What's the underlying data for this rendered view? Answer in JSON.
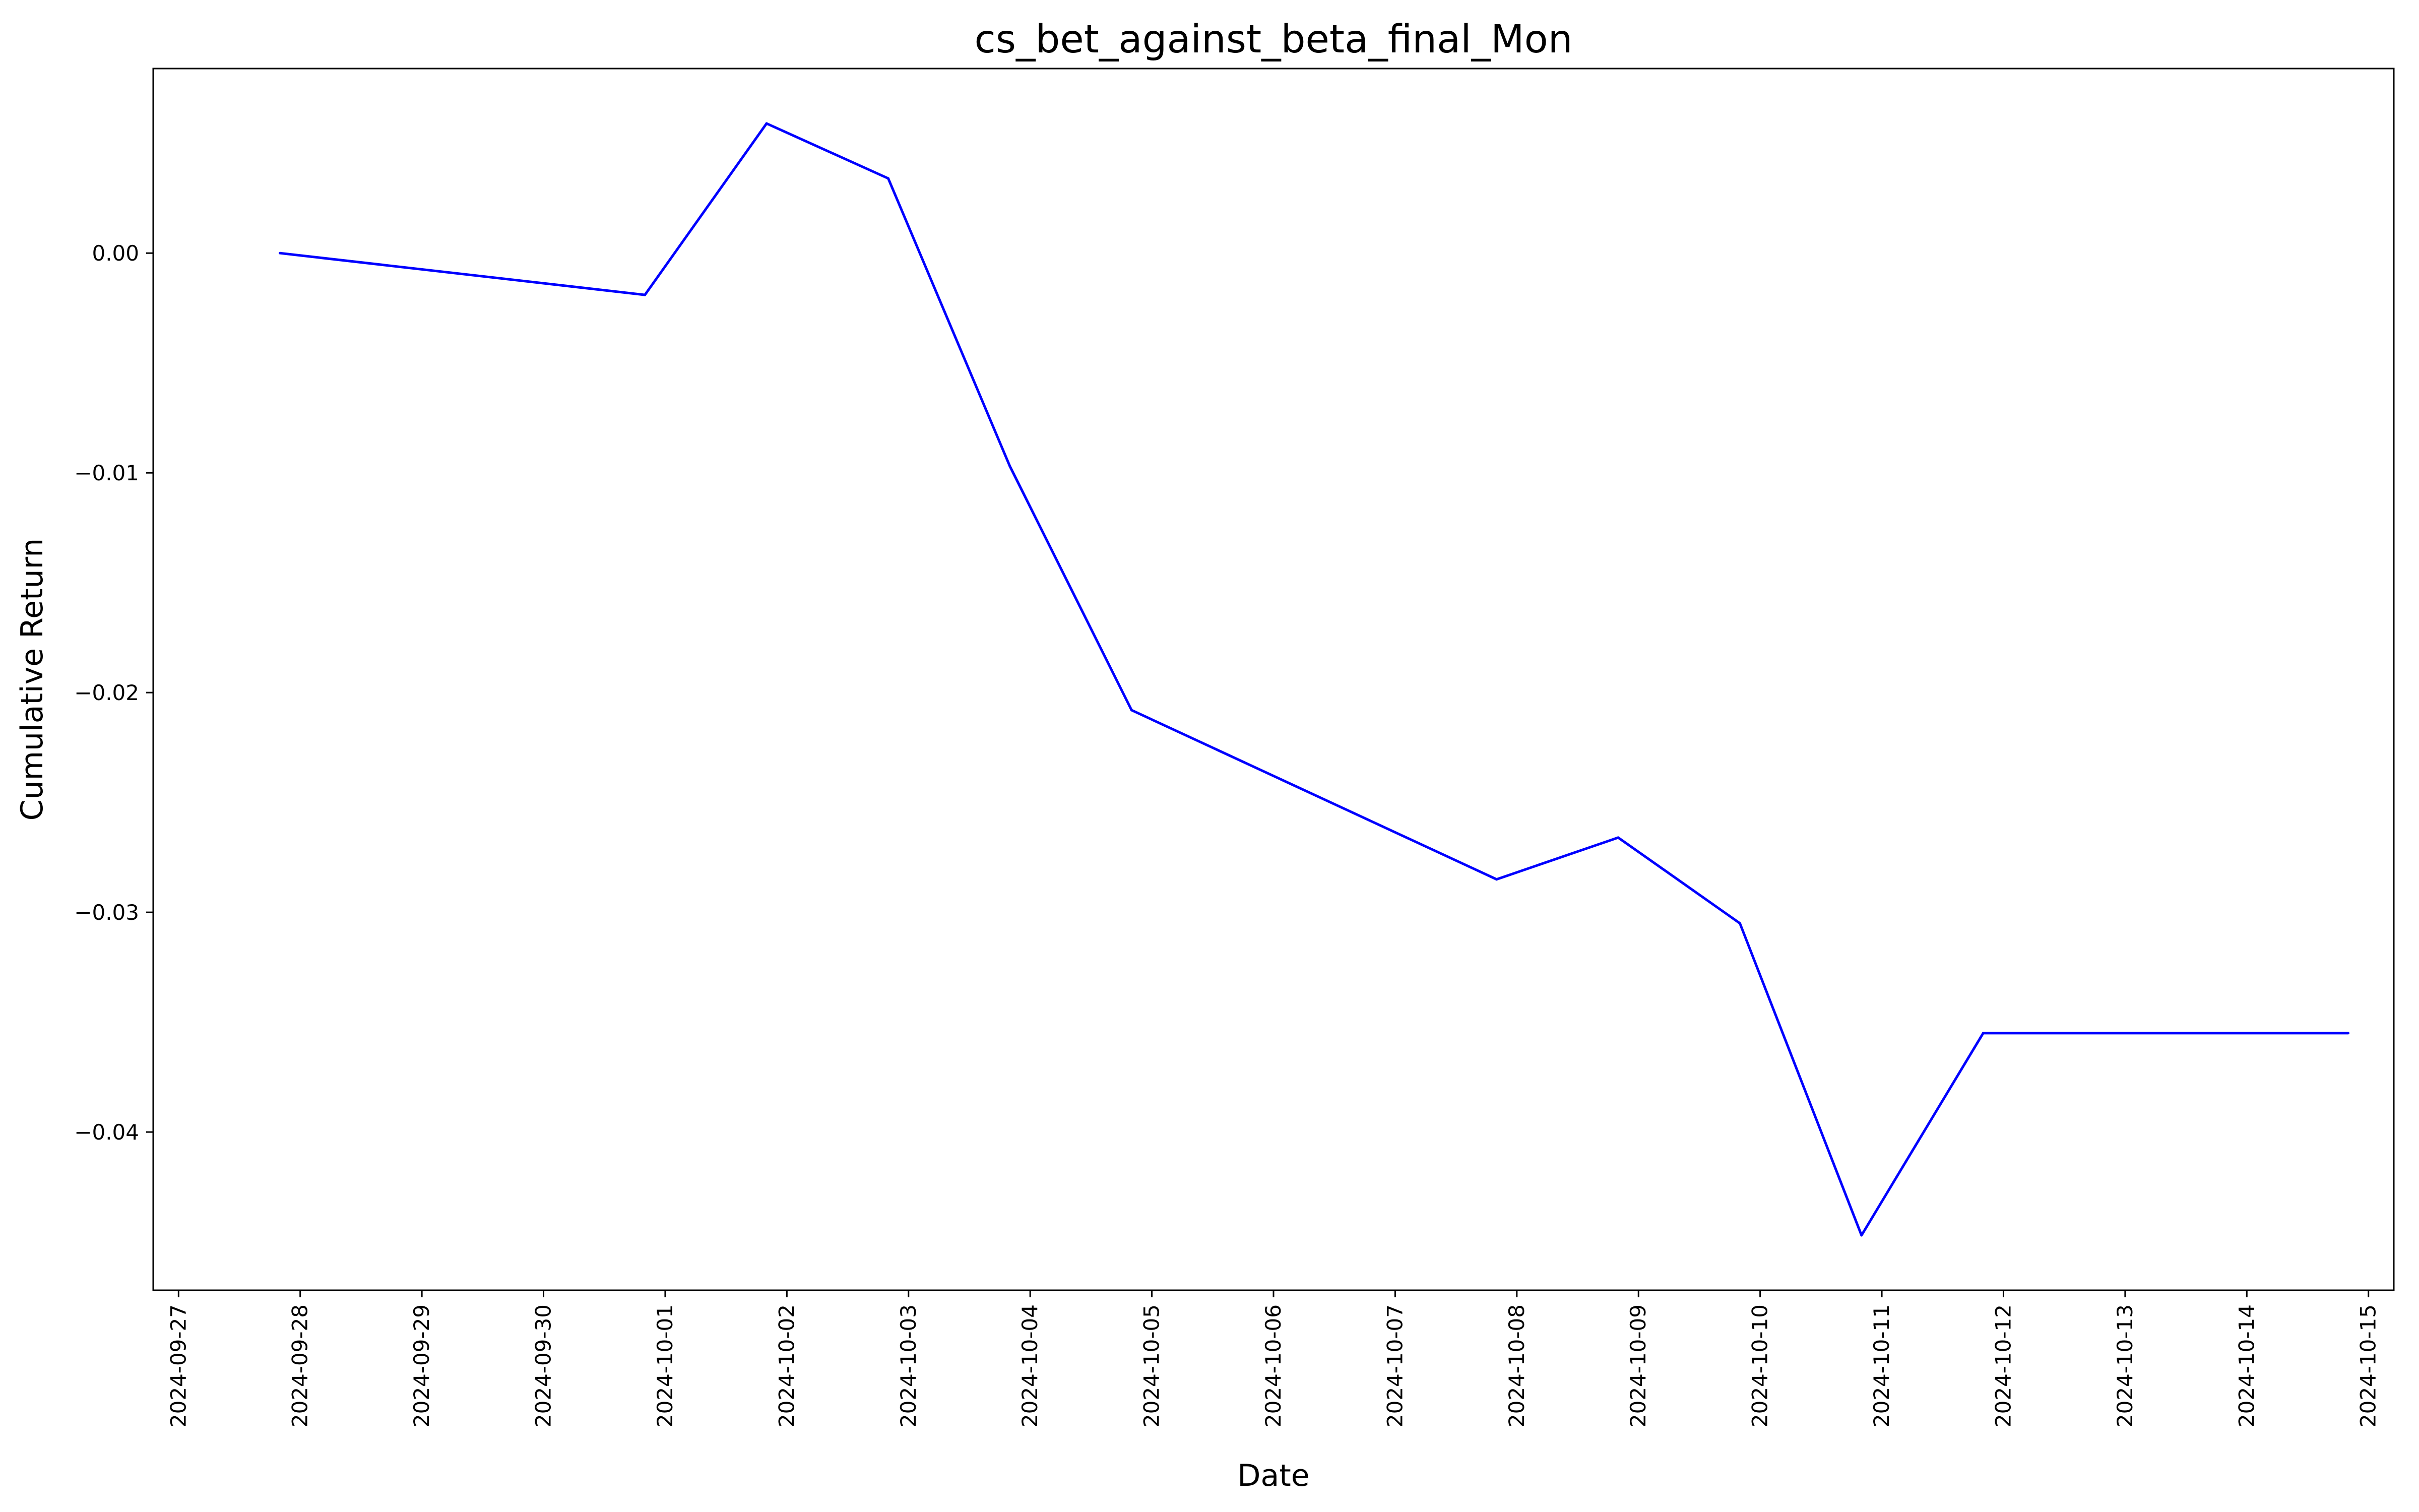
{
  "chart_data": {
    "type": "line",
    "title": "cs_bet_against_beta_final_Mon",
    "xlabel": "Date",
    "ylabel": "Cumulative Return",
    "x_ticks": [
      "2024-09-27",
      "2024-09-28",
      "2024-09-29",
      "2024-09-30",
      "2024-10-01",
      "2024-10-02",
      "2024-10-03",
      "2024-10-04",
      "2024-10-05",
      "2024-10-06",
      "2024-10-07",
      "2024-10-08",
      "2024-10-09",
      "2024-10-10",
      "2024-10-11",
      "2024-10-12",
      "2024-10-13",
      "2024-10-14",
      "2024-10-15"
    ],
    "y_ticks": [
      "0.00",
      "−0.01",
      "−0.02",
      "−0.03",
      "−0.04"
    ],
    "y_tick_values": [
      0.0,
      -0.01,
      -0.02,
      -0.03,
      -0.04
    ],
    "xlim": [
      "2024-09-26T19:00",
      "2024-10-15T05:00"
    ],
    "ylim": [
      -0.0472,
      0.0084
    ],
    "grid": false,
    "series": [
      {
        "color": "#0000ff",
        "x": [
          "2024-09-27T20:00",
          "2024-09-30T20:00",
          "2024-10-01T20:00",
          "2024-10-02T20:00",
          "2024-10-03T20:00",
          "2024-10-04T20:00",
          "2024-10-07T20:00",
          "2024-10-08T20:00",
          "2024-10-09T20:00",
          "2024-10-10T20:00",
          "2024-10-11T20:00",
          "2024-10-14T20:00"
        ],
        "values": [
          0.0,
          -0.0019,
          0.0059,
          0.0034,
          -0.0097,
          -0.0208,
          -0.0285,
          -0.0266,
          -0.0305,
          -0.0447,
          -0.0355,
          -0.0355
        ]
      }
    ]
  }
}
